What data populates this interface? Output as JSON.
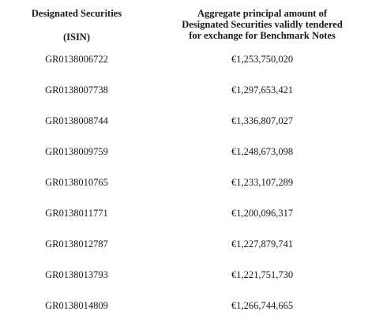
{
  "header": {
    "col1_line1": "Designated Securities",
    "col1_line2": "(ISIN)",
    "col2_line1": "Aggregate principal amount of",
    "col2_line2": "Designated Securities validly tendered",
    "col2_line3": "for exchange for Benchmark Notes"
  },
  "rows": [
    {
      "isin": "GR0138006722",
      "amount": "€1,253,750,020"
    },
    {
      "isin": "GR0138007738",
      "amount": "€1,297,653,421"
    },
    {
      "isin": "GR0138008744",
      "amount": "€1,336,807,027"
    },
    {
      "isin": "GR0138009759",
      "amount": "€1,248,673,098"
    },
    {
      "isin": "GR0138010765",
      "amount": "€1,233,107,289"
    },
    {
      "isin": "GR0138011771",
      "amount": "€1,200,096,317"
    },
    {
      "isin": "GR0138012787",
      "amount": "€1,227,879,741"
    },
    {
      "isin": "GR0138013793",
      "amount": "€1,221,751,730"
    },
    {
      "isin": "GR0138014809",
      "amount": "€1,266,744,665"
    }
  ]
}
